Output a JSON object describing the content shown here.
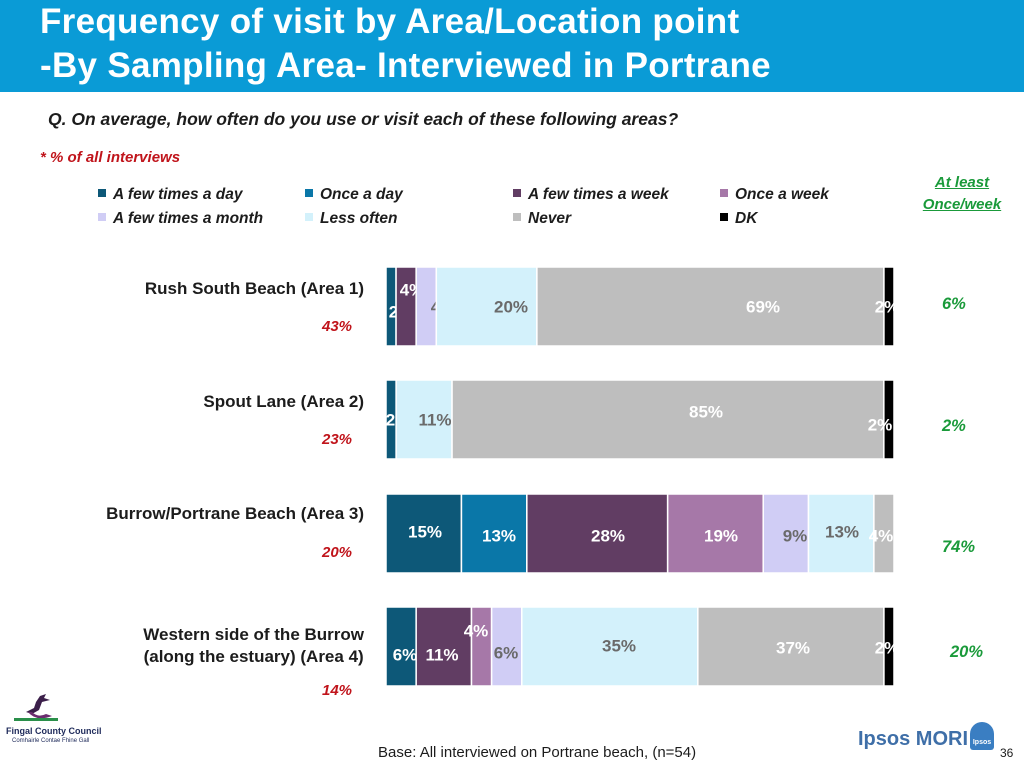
{
  "title": [
    "Frequency of visit by Area/Location point",
    "-By Sampling Area- Interviewed in Portrane"
  ],
  "question": "Q. On average, how often do you use or visit each of these following areas?",
  "note": "* % of  all interviews",
  "column_header": [
    "At least",
    "Once/week"
  ],
  "footer": {
    "base": "Base: All interviewed on Portrane beach, (n=54)",
    "page_number": "36",
    "left_logo_text": "Fingal County Council",
    "left_logo_subtext": "Comhairle Contae Fhine Gall",
    "right_logo_text": "Ipsos MORI",
    "right_logo_mark": "Ipsos"
  },
  "colors": {
    "title_bar": "#0a9bd6",
    "accent_red": "#c0141b",
    "accent_green": "#1a9a3a"
  },
  "chart_data": {
    "type": "bar",
    "orientation": "horizontal-stacked-100",
    "xlim": [
      0,
      100
    ],
    "legend_position": "top",
    "series": [
      {
        "name": "A few times a day",
        "color": "#0d5878",
        "values": [
          2,
          2,
          15,
          6
        ]
      },
      {
        "name": "Once a day",
        "color": "#0a77a8",
        "values": [
          0,
          0,
          13,
          0
        ]
      },
      {
        "name": "A few times a week",
        "color": "#613d63",
        "values": [
          4,
          0,
          28,
          11
        ]
      },
      {
        "name": "Once a week",
        "color": "#a678a8",
        "values": [
          0,
          0,
          19,
          4
        ]
      },
      {
        "name": "A few times a month",
        "color": "#d0cdf5",
        "values": [
          4,
          0,
          9,
          6
        ]
      },
      {
        "name": "Less often",
        "color": "#d3f1fb",
        "values": [
          20,
          11,
          13,
          35
        ]
      },
      {
        "name": "Never",
        "color": "#bebebe",
        "values": [
          69,
          85,
          4,
          37
        ]
      },
      {
        "name": "DK",
        "color": "#000000",
        "values": [
          2,
          2,
          0,
          2
        ]
      }
    ],
    "categories": [
      {
        "label": [
          "Rush South Beach (Area 1)"
        ],
        "share": "43%",
        "at_least_once_week": "6%"
      },
      {
        "label": [
          "Spout Lane (Area 2)"
        ],
        "share": "23%",
        "at_least_once_week": "2%"
      },
      {
        "label": [
          "Burrow/Portrane Beach (Area 3)"
        ],
        "share": "20%",
        "at_least_once_week": "74%"
      },
      {
        "label": [
          "Western side of the Burrow",
          "(along the estuary) (Area 4)"
        ],
        "share": "14%",
        "at_least_once_week": "20%"
      }
    ],
    "segment_labels": [
      [
        "2%",
        "4%",
        "4%",
        "20%",
        "69%",
        "2%"
      ],
      [
        "2%",
        "11%",
        "85%",
        "2%"
      ],
      [
        "15%",
        "13%",
        "28%",
        "19%",
        "9%",
        "13%",
        "4%"
      ],
      [
        "6%",
        "11%",
        "4%",
        "6%",
        "35%",
        "37%",
        "2%"
      ]
    ]
  }
}
